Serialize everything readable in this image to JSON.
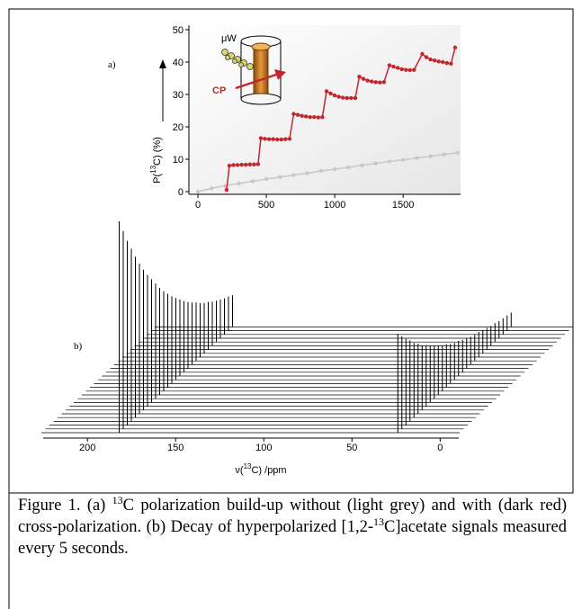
{
  "chart_data": [
    {
      "type": "line",
      "panel_label": "a)",
      "ylabel": [
        "P(",
        "13",
        "C) (%)"
      ],
      "inset_labels": [
        "μW",
        "CP"
      ],
      "xlim": [
        0,
        1900
      ],
      "ylim": [
        0,
        50
      ],
      "xticks": [
        0,
        500,
        1000,
        1500
      ],
      "yticks": [
        0,
        10,
        20,
        30,
        40,
        50
      ],
      "series": [
        {
          "color": "#c8c8c8",
          "x": [
            0,
            100,
            200,
            300,
            400,
            500,
            600,
            700,
            800,
            900,
            1000,
            1100,
            1200,
            1300,
            1400,
            1500,
            1600,
            1700,
            1800,
            1900
          ],
          "values": [
            0,
            1.0,
            1.8,
            2.5,
            3.2,
            3.9,
            4.5,
            5.1,
            5.7,
            6.4,
            6.9,
            7.5,
            8.1,
            8.7,
            9.3,
            9.8,
            10.4,
            10.9,
            11.5,
            12.0
          ]
        },
        {
          "color": "#c1272d",
          "x": [
            210,
            230,
            260,
            290,
            320,
            350,
            380,
            410,
            440,
            460,
            490,
            520,
            550,
            580,
            610,
            640,
            670,
            700,
            730,
            760,
            790,
            820,
            850,
            880,
            910,
            940,
            970,
            1000,
            1030,
            1060,
            1090,
            1120,
            1150,
            1180,
            1210,
            1240,
            1270,
            1300,
            1330,
            1360,
            1400,
            1430,
            1460,
            1490,
            1520,
            1550,
            1580,
            1640,
            1670,
            1700,
            1730,
            1760,
            1790,
            1820,
            1850,
            1880
          ],
          "values": [
            0.5,
            8,
            8.2,
            8.2,
            8.3,
            8.3,
            8.4,
            8.4,
            8.5,
            16.5,
            16.3,
            16.2,
            16.2,
            16.1,
            16.1,
            16.2,
            16.3,
            24,
            23.7,
            23.4,
            23.2,
            23,
            23,
            22.9,
            23,
            31,
            30.3,
            29.7,
            29.3,
            29,
            28.9,
            28.9,
            28.9,
            35.5,
            34.8,
            34.3,
            34,
            33.8,
            33.7,
            33.8,
            39,
            38.6,
            38.2,
            37.8,
            37.6,
            37.5,
            37.6,
            42.5,
            41.5,
            40.8,
            40.5,
            40.2,
            40,
            39.7,
            39.5,
            44.5
          ]
        }
      ]
    },
    {
      "type": "waterfall",
      "panel_label": "b)",
      "xlabel": [
        "ν(",
        "13",
        "C) /ppm"
      ],
      "color": "#000000",
      "xlim": [
        220,
        -8
      ],
      "xticks": [
        200,
        150,
        100,
        50,
        0
      ],
      "series": [
        {
          "x": 182,
          "values": [
            235,
            220,
            205,
            192,
            179,
            167,
            156,
            146,
            137,
            128,
            119,
            111,
            104,
            97,
            91,
            85,
            79,
            74,
            69,
            65,
            60,
            56,
            53,
            49,
            46,
            43,
            40,
            38,
            35
          ]
        },
        {
          "x": 24,
          "values": [
            110,
            103,
            96,
            90,
            83,
            78,
            72,
            68,
            63,
            59,
            55,
            51,
            48,
            44,
            41,
            39,
            36,
            34,
            31,
            29,
            28,
            26,
            24,
            22,
            21,
            19,
            18,
            17,
            16
          ]
        }
      ]
    }
  ],
  "caption": [
    "Figure 1. (a) ",
    "13",
    "C polarization build-up without (light grey) and with (dark red) cross-polarization. (b) Decay of hyperpolarized [1,2-",
    "13",
    "C]acetate signals measured every 5 seconds."
  ]
}
